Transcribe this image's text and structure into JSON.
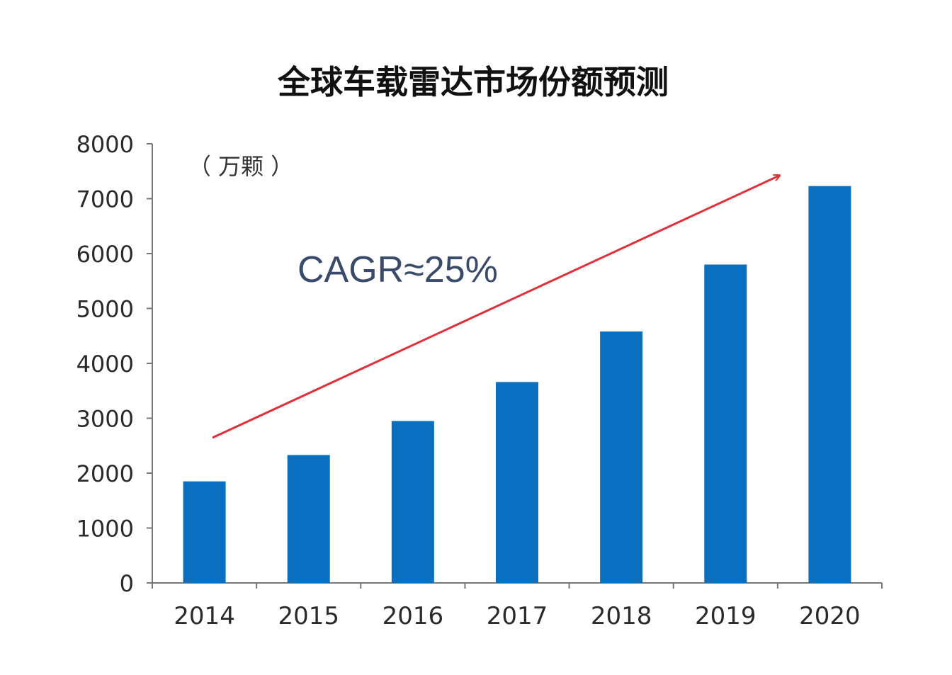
{
  "chart_data": {
    "type": "bar",
    "title": "全球车载雷达市场份额预测",
    "unit_label": "（ 万颗 ）",
    "annotation": "CAGR≈25%",
    "categories": [
      "2014",
      "2015",
      "2016",
      "2017",
      "2018",
      "2019",
      "2020"
    ],
    "values": [
      1850,
      2330,
      2950,
      3660,
      4580,
      5800,
      7230
    ],
    "ylim": [
      0,
      8000
    ],
    "yticks": [
      0,
      1000,
      2000,
      3000,
      4000,
      5000,
      6000,
      7000,
      8000
    ],
    "grid": false,
    "legend": "none",
    "colors": {
      "bar": "#0b6fc0",
      "arrow": "#e0303a",
      "axis": "#777777"
    }
  }
}
